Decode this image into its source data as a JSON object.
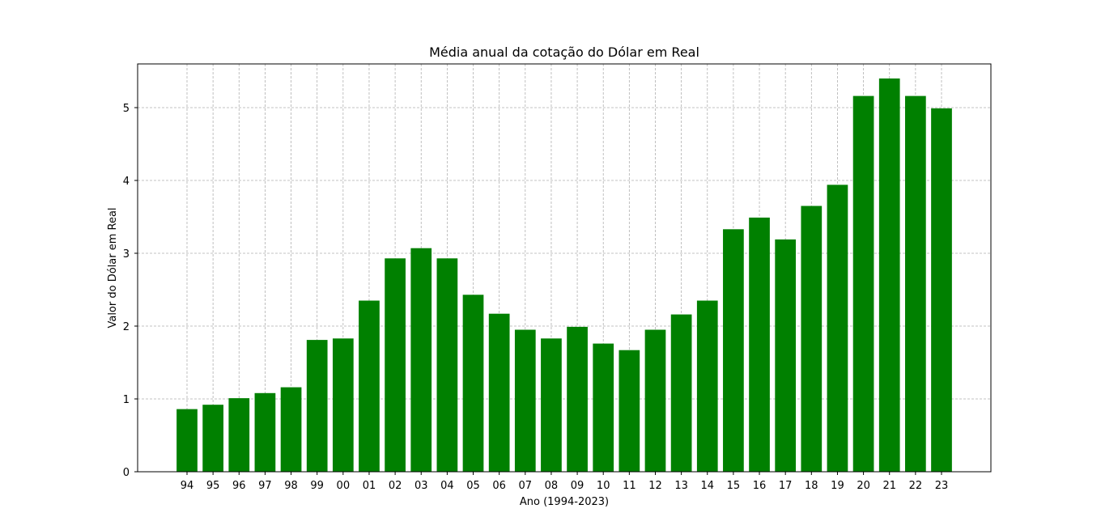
{
  "chart_data": {
    "type": "bar",
    "title": "Média anual da cotação do Dólar em Real",
    "xlabel": "Ano (1994-2023)",
    "ylabel": "Valor do Dólar em Real",
    "categories": [
      "94",
      "95",
      "96",
      "97",
      "98",
      "99",
      "00",
      "01",
      "02",
      "03",
      "04",
      "05",
      "06",
      "07",
      "08",
      "09",
      "10",
      "11",
      "12",
      "13",
      "14",
      "15",
      "16",
      "17",
      "18",
      "19",
      "20",
      "21",
      "22",
      "23"
    ],
    "values": [
      0.86,
      0.92,
      1.01,
      1.08,
      1.16,
      1.81,
      1.83,
      2.35,
      2.93,
      3.07,
      2.93,
      2.43,
      2.17,
      1.95,
      1.83,
      1.99,
      1.76,
      1.67,
      1.95,
      2.16,
      2.35,
      3.33,
      3.49,
      3.19,
      3.65,
      3.94,
      5.16,
      5.4,
      5.16,
      4.99
    ],
    "yticks": [
      "0",
      "1",
      "2",
      "3",
      "4",
      "5"
    ],
    "ylim": [
      0,
      5.6
    ],
    "grid": true,
    "bar_color": "#008000"
  }
}
